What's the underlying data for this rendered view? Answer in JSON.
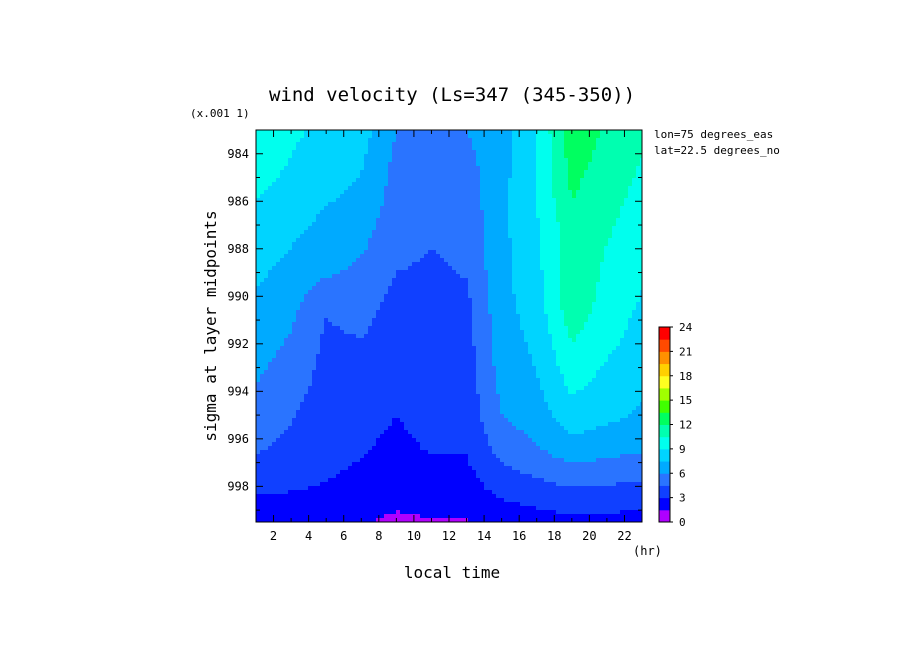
{
  "chart_data": {
    "type": "heatmap",
    "title": "wind velocity (Ls=347 (345-350))",
    "xlabel": "local time",
    "xunit": "(hr)",
    "ylabel": "sigma at layer midpoints",
    "yscale_label": "(x.001 1)",
    "annotations": [
      "lon=75 degrees_eas",
      "lat=22.5 degrees_no"
    ],
    "x": [
      1,
      3,
      5,
      7,
      9,
      11,
      13,
      15,
      17,
      19,
      21,
      23
    ],
    "y": [
      983,
      984.5,
      986,
      987.5,
      989,
      990.5,
      992,
      993.5,
      995,
      996.5,
      998,
      999.5
    ],
    "xlim": [
      1,
      23
    ],
    "ylim": [
      999.5,
      983
    ],
    "xticks": [
      "2",
      "4",
      "6",
      "8",
      "10",
      "12",
      "14",
      "16",
      "18",
      "20",
      "22"
    ],
    "yticks": [
      "984",
      "986",
      "988",
      "990",
      "992",
      "994",
      "996",
      "998"
    ],
    "values": [
      [
        10.0,
        9.3,
        8.6,
        8.2,
        6.0,
        5.5,
        6.0,
        7.0,
        9.0,
        13.0,
        11.8,
        10.8
      ],
      [
        9.6,
        8.9,
        8.1,
        7.6,
        5.6,
        5.1,
        5.5,
        7.0,
        9.0,
        12.5,
        11.4,
        10.4
      ],
      [
        9.0,
        8.4,
        7.6,
        7.1,
        5.3,
        4.8,
        5.2,
        7.1,
        9.0,
        12.0,
        11.0,
        10.0
      ],
      [
        8.4,
        7.7,
        6.9,
        6.4,
        5.0,
        4.6,
        4.9,
        7.1,
        8.8,
        11.2,
        10.6,
        9.6
      ],
      [
        7.8,
        7.0,
        6.2,
        5.7,
        4.5,
        4.3,
        4.6,
        7.1,
        8.5,
        11.8,
        10.2,
        9.2
      ],
      [
        7.2,
        6.4,
        4.6,
        5.1,
        3.9,
        4.1,
        4.1,
        7.0,
        8.2,
        11.5,
        9.8,
        8.8
      ],
      [
        6.6,
        5.8,
        4.2,
        4.4,
        3.6,
        4.3,
        3.9,
        6.8,
        7.8,
        10.5,
        9.3,
        8.4
      ],
      [
        6.1,
        5.2,
        4.0,
        4.0,
        3.3,
        4.0,
        3.7,
        6.5,
        7.4,
        9.5,
        8.6,
        7.9
      ],
      [
        5.6,
        4.6,
        3.8,
        3.6,
        3.0,
        3.6,
        3.5,
        6.0,
        6.8,
        8.4,
        7.9,
        7.3
      ],
      [
        4.6,
        4.1,
        3.5,
        3.1,
        2.6,
        3.1,
        3.1,
        5.0,
        5.8,
        6.8,
        6.4,
        6.1
      ],
      [
        3.4,
        3.2,
        2.9,
        2.6,
        2.2,
        2.4,
        2.4,
        3.6,
        4.1,
        4.6,
        4.4,
        4.3
      ],
      [
        1.9,
        1.8,
        1.7,
        1.6,
        1.2,
        1.4,
        1.4,
        2.0,
        2.3,
        2.6,
        2.5,
        2.4
      ]
    ],
    "colorbar": {
      "levels": [
        0,
        1.5,
        3,
        4.5,
        6,
        7.5,
        9,
        10.5,
        12,
        13.5,
        15,
        16.5,
        18,
        19.5,
        21,
        22.5,
        24
      ],
      "tick_labels": [
        "0",
        "3",
        "6",
        "9",
        "12",
        "15",
        "18",
        "21",
        "24"
      ],
      "colors": [
        "#b000ff",
        "#0000ff",
        "#1040ff",
        "#2a74ff",
        "#00aaff",
        "#00d4ff",
        "#00ffee",
        "#00ffb0",
        "#00ff60",
        "#40ff00",
        "#a0ff00",
        "#ffff20",
        "#ffd000",
        "#ff9000",
        "#ff4a00",
        "#ff0000"
      ]
    }
  }
}
